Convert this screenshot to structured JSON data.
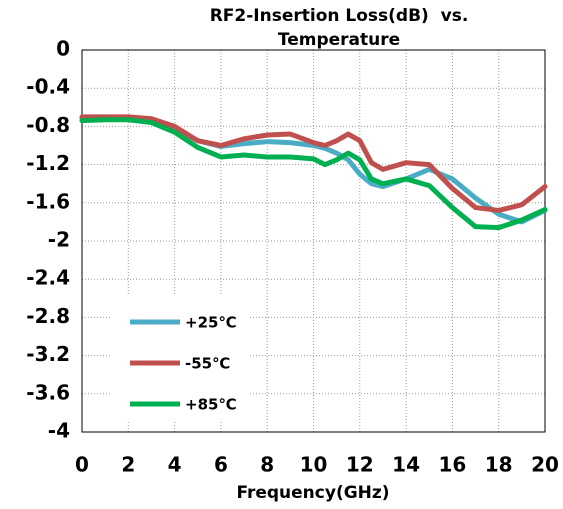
{
  "chart_data": {
    "type": "line",
    "title": "RF2-Insertion Loss(dB)  vs. Temperature",
    "x_label": "Frequency(GHz)",
    "x": [
      0,
      1,
      2,
      3,
      4,
      5,
      6,
      7,
      8,
      9,
      10,
      10.5,
      11,
      11.5,
      12,
      12.5,
      13,
      14,
      15,
      16,
      17,
      18,
      19,
      20
    ],
    "series": [
      {
        "name": "+25℃",
        "color": "#4bacc6",
        "values": [
          -0.72,
          -0.72,
          -0.72,
          -0.74,
          -0.82,
          -0.95,
          -1.01,
          -0.98,
          -0.96,
          -0.97,
          -1.0,
          -1.03,
          -1.08,
          -1.15,
          -1.3,
          -1.4,
          -1.43,
          -1.35,
          -1.25,
          -1.35,
          -1.55,
          -1.72,
          -1.8,
          -1.68
        ]
      },
      {
        "name": "-55℃",
        "color": "#c0504d",
        "values": [
          -0.7,
          -0.7,
          -0.7,
          -0.72,
          -0.8,
          -0.95,
          -1.0,
          -0.93,
          -0.89,
          -0.88,
          -0.97,
          -1.0,
          -0.95,
          -0.88,
          -0.95,
          -1.18,
          -1.25,
          -1.18,
          -1.2,
          -1.45,
          -1.65,
          -1.68,
          -1.62,
          -1.43
        ]
      },
      {
        "name": "+85℃",
        "color": "#00b050",
        "values": [
          -0.74,
          -0.73,
          -0.73,
          -0.76,
          -0.86,
          -1.02,
          -1.12,
          -1.1,
          -1.12,
          -1.12,
          -1.14,
          -1.2,
          -1.15,
          -1.08,
          -1.15,
          -1.35,
          -1.4,
          -1.35,
          -1.42,
          -1.65,
          -1.85,
          -1.86,
          -1.78,
          -1.67
        ]
      }
    ],
    "xlim": [
      0,
      20
    ],
    "xticks": [
      0,
      2,
      4,
      6,
      8,
      10,
      12,
      14,
      16,
      18,
      20
    ],
    "ylim": [
      -4,
      0
    ],
    "yticks": [
      0,
      -0.4,
      -0.8,
      -1.2,
      -1.6,
      -2,
      -2.4,
      -2.8,
      -3.2,
      -3.6,
      -4
    ],
    "grid": true,
    "legend": "lower left"
  }
}
